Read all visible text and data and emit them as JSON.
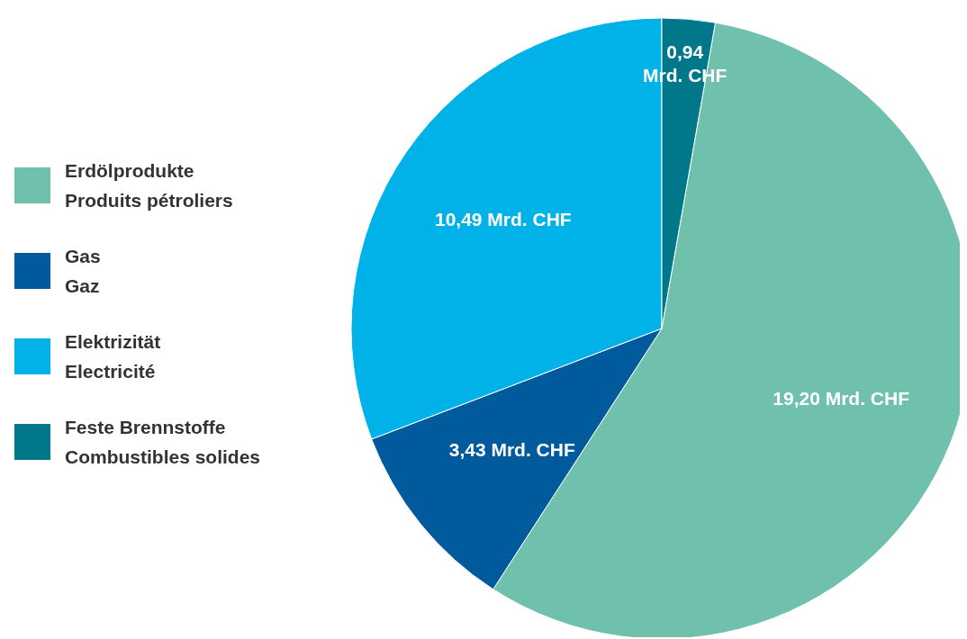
{
  "chart_data": {
    "type": "pie",
    "categories": [
      "Erdölprodukte\nProduits pétroliers",
      "Gas\nGaz",
      "Elektrizität\nElectricité",
      "Feste Brennstoffe\nCombustibles solides"
    ],
    "values": [
      19.2,
      3.43,
      10.49,
      0.94
    ],
    "colors": [
      "#6fc0ac",
      "#005a9c",
      "#00b2e8",
      "#00788a"
    ],
    "value_labels": [
      "19,20 Mrd. CHF",
      "3,43 Mrd. CHF",
      "10,49 Mrd. CHF",
      "0,94 Mrd. CHF"
    ],
    "legend": "left"
  }
}
